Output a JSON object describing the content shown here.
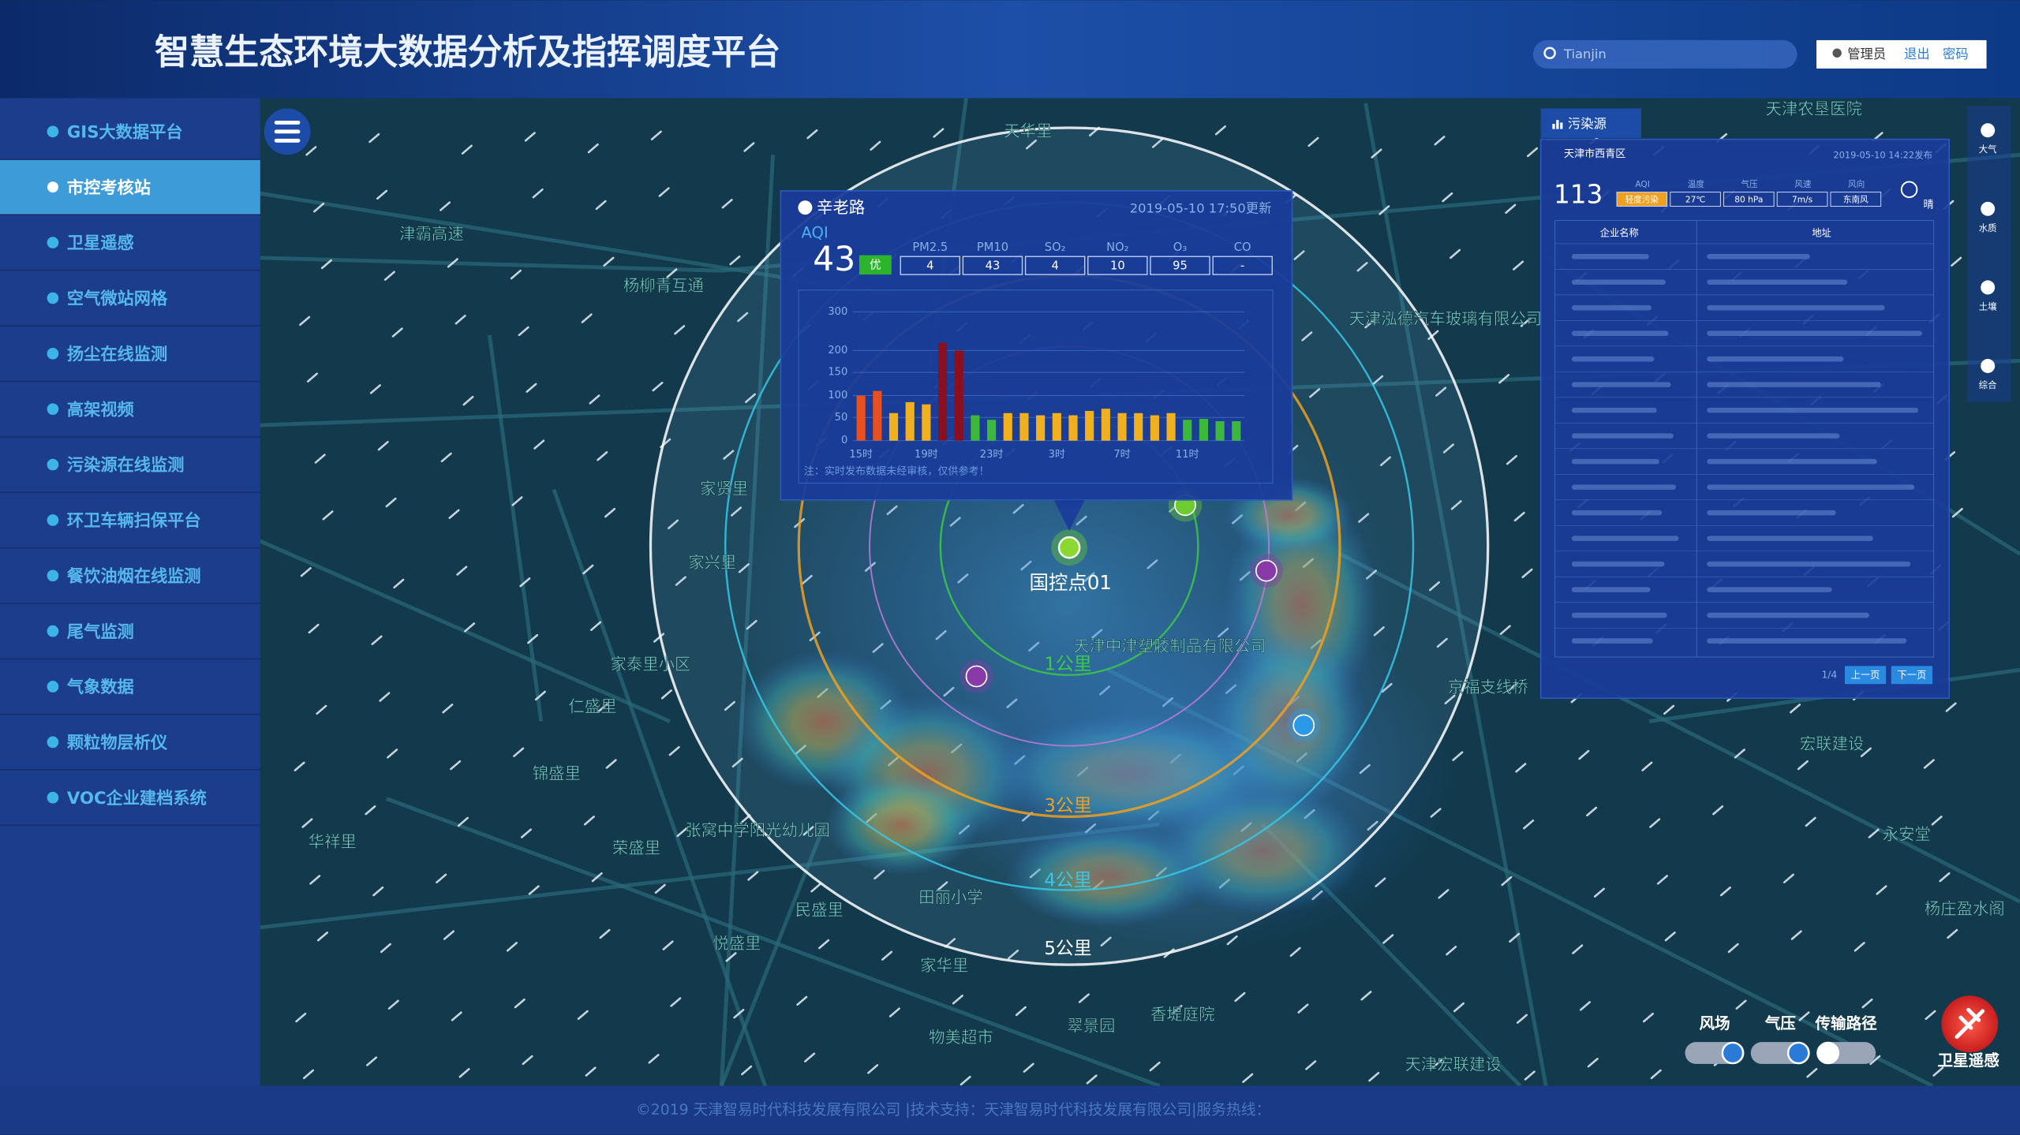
{
  "header": {
    "title": "智慧生态环境大数据分析及指挥调度平台",
    "search_placeholder": "Tianjin",
    "user": "管理员",
    "logout": "退出",
    "password": "密码"
  },
  "sidebar": {
    "items": [
      "GIS大数据平台",
      "市控考核站",
      "卫星遥感",
      "空气微站网格",
      "扬尘在线监测",
      "高架视频",
      "污染源在线监测",
      "环卫车辆扫保平台",
      "餐饮油烟在线监测",
      "尾气监测",
      "气象数据",
      "颗粒物层析仪",
      "VOC企业建档系统"
    ],
    "active": 1
  },
  "map": {
    "labels": [
      "天华里",
      "天津农垦医院",
      "津霸高速",
      "杨柳青互通",
      "天津泓德汽车玻璃有限公司",
      "家贤里",
      "家兴里",
      "天津中津塑胶制品有限公司",
      "仁盛里",
      "家泰里小区",
      "锦盛里",
      "华祥里",
      "荣盛里",
      "民盛里",
      "悦盛里",
      "家华里",
      "物美超市",
      "翠景园",
      "香堤庭院",
      "京福支线桥",
      "宏联建设",
      "永安堂",
      "杨庄盈水阁",
      "天津宏联建设",
      "田丽小学",
      "张窝中学阳光幼儿园"
    ],
    "rings": [
      "1公里",
      "3公里",
      "4公里",
      "5公里"
    ],
    "station_point": "国控点01"
  },
  "station": {
    "name": "辛老路",
    "updated": "2019-05-10 17:50更新",
    "aqi_label": "AQI",
    "aqi": 43,
    "level": "优",
    "pollutants": [
      "PM2.5",
      "PM10",
      "SO₂",
      "NO₂",
      "O₃",
      "CO"
    ],
    "pollutant_values": [
      4,
      43,
      4,
      10,
      95,
      "-"
    ]
  },
  "chart_data": {
    "type": "bar",
    "categories": [
      "15时",
      null,
      null,
      null,
      "19时",
      null,
      null,
      null,
      "23时",
      null,
      null,
      null,
      "3时",
      null,
      null,
      null,
      "7时",
      null,
      null,
      null,
      "11时",
      null,
      null,
      null
    ],
    "values": [
      100,
      110,
      60,
      85,
      80,
      220,
      200,
      55,
      45,
      60,
      60,
      55,
      60,
      55,
      65,
      70,
      60,
      60,
      55,
      60,
      45,
      47,
      42,
      42
    ],
    "colors": [
      "#e8501e",
      "#e8501e",
      "#f0b020",
      "#f0b020",
      "#f0b020",
      "#8a1020",
      "#8a1020",
      "#3cb83c",
      "#3cb83c",
      "#f0b020",
      "#f0b020",
      "#f0b020",
      "#f0b020",
      "#f0b020",
      "#f0b020",
      "#f0b020",
      "#f0b020",
      "#f0b020",
      "#f0b020",
      "#f0b020",
      "#3cb83c",
      "#3cb83c",
      "#3cb83c",
      "#3cb83c"
    ],
    "ylim": [
      0,
      300
    ],
    "yticks": [
      0,
      50,
      100,
      150,
      200,
      300
    ],
    "grid": true,
    "note": "注：实时发布数据未经审核，仅供参考！"
  },
  "source_panel": {
    "tab": "污染源",
    "district": "天津市西青区",
    "published": "2019-05-10 14:22发布",
    "aqi": 113,
    "metric_names": [
      "AQI",
      "温度",
      "气压",
      "风速",
      "风向"
    ],
    "metric_values": [
      "轻度污染",
      "27℃",
      "80 hPa",
      "7m/s",
      "东南风"
    ],
    "weather": "晴",
    "columns": [
      "企业名称",
      "地址"
    ],
    "page": "1/4",
    "prev": "上一页",
    "next": "下一页"
  },
  "side_tools": [
    "大气",
    "水质",
    "土壤",
    "综合"
  ],
  "layers": {
    "toggles": [
      "风场",
      "气压",
      "传输路径"
    ],
    "satellite": "卫星遥感"
  },
  "footer": "©2019 天津智易时代科技发展有限公司 |技术支持：天津智易时代科技发展有限公司|服务热线："
}
